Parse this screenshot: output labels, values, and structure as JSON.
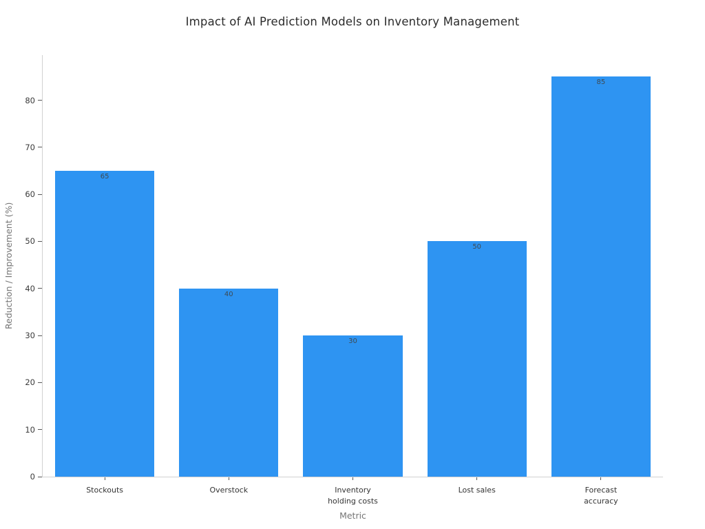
{
  "chart_data": {
    "type": "bar",
    "title": "Impact of AI Prediction Models on Inventory Management",
    "categories": [
      "Stockouts",
      "Overstock",
      "Inventory\nholding costs",
      "Lost sales",
      "Forecast\naccuracy"
    ],
    "values": [
      65,
      40,
      30,
      50,
      85
    ],
    "value_labels": [
      "65",
      "40",
      "30",
      "50",
      "85"
    ],
    "xlabel": "Metric",
    "ylabel": "Reduction / Improvement (%)",
    "ylim": [
      0,
      89.6
    ],
    "yticks": [
      0,
      10,
      20,
      30,
      40,
      50,
      60,
      70,
      80
    ],
    "grid": false,
    "legend": "none",
    "bar_color": "#2E94F2"
  },
  "colors": {
    "bar": "#2E94F2",
    "title_text": "#2b2b2b",
    "tick_text": "#3a3a3a",
    "axis_title_text": "#757575",
    "spine": "#d0d0d0",
    "bar_value_text": "#3e4a52",
    "background": "#ffffff"
  }
}
